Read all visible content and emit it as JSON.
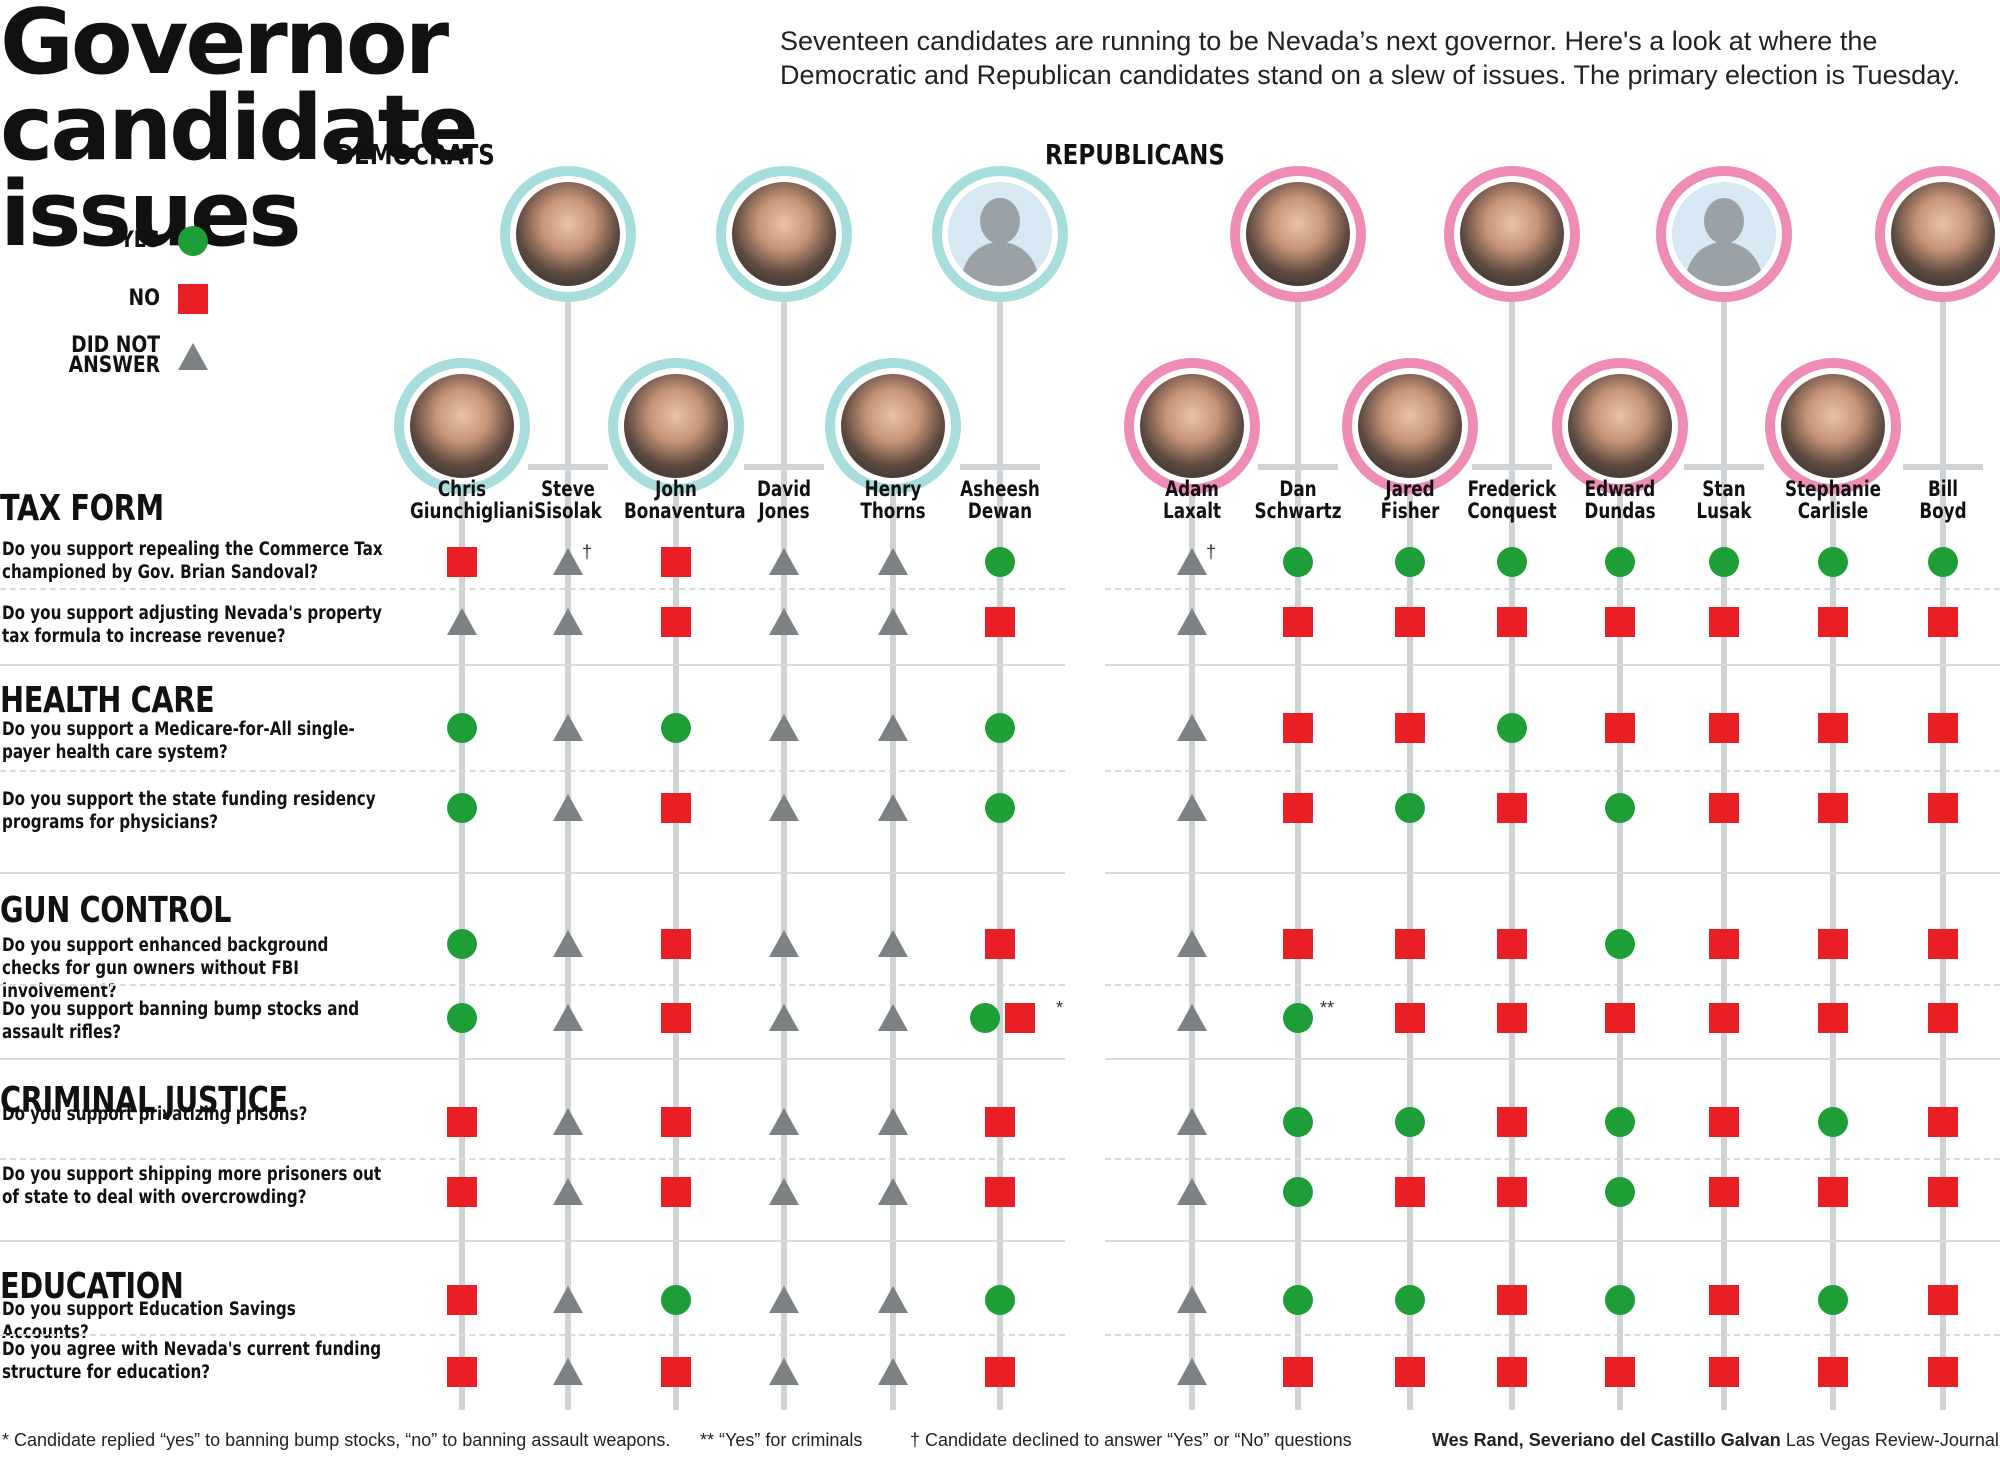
{
  "title": "Governor candidate issues",
  "intro": "Seventeen candidates are running to be Nevada’s next governor. Here's a look at where the Democratic and Republican candidates stand on a slew of issues. The primary election is Tuesday.",
  "legend": {
    "yes": "YES",
    "no": "NO",
    "dna": "DID NOT ANSWER"
  },
  "parties": {
    "dem": "DEMOCRATS",
    "rep": "REPUBLICANS"
  },
  "colors": {
    "yes": "#1e9e37",
    "no": "#ea1f25",
    "dna": "#7c8184",
    "dem_ring": "#a7dedd",
    "rep_ring": "#ef8cb5"
  },
  "candidates": [
    {
      "first": "Chris",
      "last": "Giunchigliani",
      "party": "dem"
    },
    {
      "first": "Steve",
      "last": "Sisolak",
      "party": "dem"
    },
    {
      "first": "John",
      "last": "Bonaventura",
      "party": "dem"
    },
    {
      "first": "David",
      "last": "Jones",
      "party": "dem"
    },
    {
      "first": "Henry",
      "last": "Thorns",
      "party": "dem"
    },
    {
      "first": "Asheesh",
      "last": "Dewan",
      "party": "dem"
    },
    {
      "first": "Adam",
      "last": "Laxalt",
      "party": "rep"
    },
    {
      "first": "Dan",
      "last": "Schwartz",
      "party": "rep"
    },
    {
      "first": "Jared",
      "last": "Fisher",
      "party": "rep"
    },
    {
      "first": "Frederick",
      "last": "Conquest",
      "party": "rep"
    },
    {
      "first": "Edward",
      "last": "Dundas",
      "party": "rep"
    },
    {
      "first": "Stan",
      "last": "Lusak",
      "party": "rep"
    },
    {
      "first": "Stephanie",
      "last": "Carlisle",
      "party": "rep"
    },
    {
      "first": "Bill",
      "last": "Boyd",
      "party": "rep"
    }
  ],
  "sections": [
    {
      "name": "TAX FORM",
      "questions": [
        {
          "text": "Do you support repealing the Commerce Tax championed by Gov. Brian Sandoval?",
          "answers": [
            "N",
            "D",
            "N",
            "D",
            "D",
            "Y",
            "D",
            "Y",
            "Y",
            "Y",
            "Y",
            "Y",
            "Y",
            "Y"
          ]
        },
        {
          "text": "Do you support adjusting Nevada's property tax formula to increase revenue?",
          "answers": [
            "D",
            "D",
            "N",
            "D",
            "D",
            "N",
            "D",
            "N",
            "N",
            "N",
            "N",
            "N",
            "N",
            "N"
          ]
        }
      ]
    },
    {
      "name": "HEALTH CARE",
      "questions": [
        {
          "text": "Do you support a Medicare-for-All single-payer health care system?",
          "answers": [
            "Y",
            "D",
            "Y",
            "D",
            "D",
            "Y",
            "D",
            "N",
            "N",
            "Y",
            "N",
            "N",
            "N",
            "N"
          ]
        },
        {
          "text": "Do you support the state funding residency programs for physicians?",
          "answers": [
            "Y",
            "D",
            "N",
            "D",
            "D",
            "Y",
            "D",
            "N",
            "Y",
            "N",
            "Y",
            "N",
            "N",
            "N"
          ]
        }
      ]
    },
    {
      "name": "GUN CONTROL",
      "questions": [
        {
          "text": "Do you support enhanced background checks for gun owners without FBI involvement?",
          "answers": [
            "Y",
            "D",
            "N",
            "D",
            "D",
            "N",
            "D",
            "N",
            "N",
            "N",
            "Y",
            "N",
            "N",
            "N"
          ]
        },
        {
          "text": "Do you support banning bump stocks and assault rifles?",
          "answers": [
            "Y",
            "D",
            "N",
            "D",
            "D",
            "YN",
            "D",
            "Y",
            "N",
            "N",
            "N",
            "N",
            "N",
            "N"
          ]
        }
      ]
    },
    {
      "name": "CRIMINAL JUSTICE",
      "questions": [
        {
          "text": "Do you support privatizing prisons?",
          "answers": [
            "N",
            "D",
            "N",
            "D",
            "D",
            "N",
            "D",
            "Y",
            "Y",
            "N",
            "Y",
            "N",
            "Y",
            "N"
          ]
        },
        {
          "text": "Do you support shipping more prisoners out of state to deal with overcrowding?",
          "answers": [
            "N",
            "D",
            "N",
            "D",
            "D",
            "N",
            "D",
            "Y",
            "N",
            "N",
            "Y",
            "N",
            "N",
            "N"
          ]
        }
      ]
    },
    {
      "name": "EDUCATION",
      "questions": [
        {
          "text": "Do you support Education Savings Accounts?",
          "answers": [
            "N",
            "D",
            "Y",
            "D",
            "D",
            "Y",
            "D",
            "Y",
            "Y",
            "N",
            "Y",
            "N",
            "Y",
            "N"
          ]
        },
        {
          "text": "Do you agree with Nevada's current funding structure for education?",
          "answers": [
            "N",
            "D",
            "N",
            "D",
            "D",
            "N",
            "D",
            "N",
            "N",
            "N",
            "N",
            "N",
            "N",
            "N"
          ]
        }
      ]
    }
  ],
  "note_marks": {
    "dagger": "†",
    "star": "*",
    "double_star": "**"
  },
  "footnotes": {
    "star": "* Candidate replied “yes” to banning bump stocks, “no” to banning assault weapons.",
    "double_star": "** “Yes” for criminals",
    "dagger": "† Candidate declined to answer “Yes” or “No” questions"
  },
  "credit": {
    "names": "Wes Rand, Severiano del Castillo Galvan",
    "org": "Las Vegas Review-Journal"
  }
}
